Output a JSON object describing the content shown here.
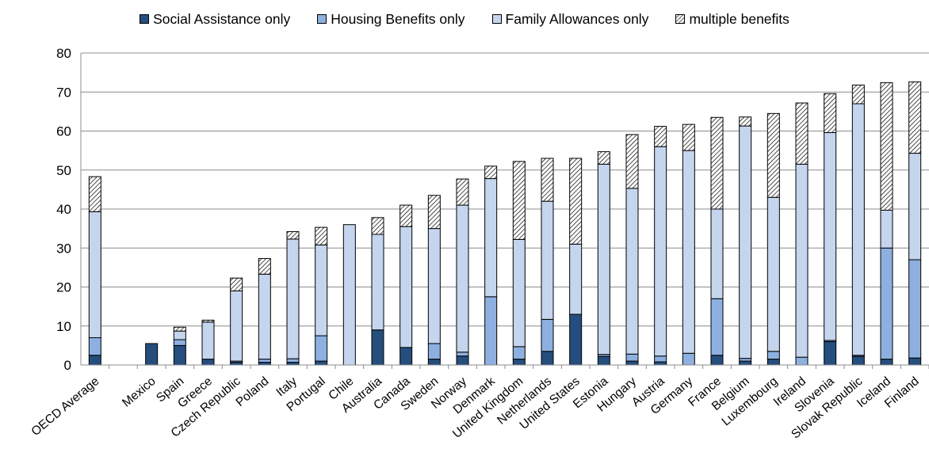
{
  "chart_data": {
    "type": "bar",
    "stacked": true,
    "title": "",
    "xlabel": "",
    "ylabel": "",
    "ylim": [
      0,
      80
    ],
    "yticks": [
      0,
      10,
      20,
      30,
      40,
      50,
      60,
      70,
      80
    ],
    "grid": true,
    "legend_position": "top",
    "categories": [
      "OECD Average",
      "",
      "Mexico",
      "Spain",
      "Greece",
      "Czech Republic",
      "Poland",
      "Italy",
      "Portugal",
      "Chile",
      "Australia",
      "Canada",
      "Sweden",
      "Norway",
      "Denmark",
      "United Kingdom",
      "Netherlands",
      "United States",
      "Estonia",
      "Hungary",
      "Austria",
      "Germany",
      "France",
      "Belgium",
      "Luxembourg",
      "Ireland",
      "Slovenia",
      "Slovak Republic",
      "Iceland",
      "Finland"
    ],
    "series": [
      {
        "name": "Social Assistance only",
        "color": "#254e7e",
        "pattern": "solid",
        "values": [
          2.5,
          0,
          5.5,
          5,
          1.5,
          0.7,
          0.7,
          0.7,
          1,
          0,
          9,
          4.5,
          1.5,
          2.3,
          0,
          1.5,
          3.5,
          13,
          2.2,
          1,
          0.8,
          0,
          2.5,
          1,
          1.5,
          0,
          6,
          2.2,
          1.5,
          1.8
        ]
      },
      {
        "name": "Housing Benefits only",
        "color": "#8db0e0",
        "pattern": "solid",
        "values": [
          4.5,
          0,
          0,
          1.5,
          0,
          0.3,
          0.8,
          0.9,
          6.5,
          0,
          0,
          0,
          4,
          1,
          17.5,
          3.2,
          8.2,
          0,
          0.5,
          1.8,
          1.5,
          3,
          14.5,
          0.7,
          2,
          2,
          0.3,
          0.3,
          28.5,
          25.2
        ]
      },
      {
        "name": "Family Allowances only",
        "color": "#c5d5ee",
        "pattern": "solid",
        "values": [
          32.3,
          0,
          0,
          2.2,
          9.5,
          18,
          21.8,
          30.7,
          23.3,
          36,
          24.5,
          31,
          29.5,
          37.7,
          30.3,
          27.5,
          30.3,
          18,
          48.8,
          42.5,
          53.7,
          52,
          23,
          59.6,
          39.5,
          49.5,
          53.3,
          64.5,
          9.7,
          27.3
        ]
      },
      {
        "name": "multiple benefits",
        "color": "#ffffff",
        "pattern": "hatch",
        "values": [
          9,
          0,
          0,
          1,
          0.5,
          3.3,
          4,
          1.9,
          4.5,
          0,
          4.3,
          5.5,
          8.5,
          6.7,
          3.2,
          20,
          11,
          22,
          3.2,
          13.8,
          5.2,
          6.7,
          23.5,
          2.3,
          21.5,
          15.7,
          10,
          4.8,
          32.7,
          18.3
        ]
      }
    ]
  }
}
